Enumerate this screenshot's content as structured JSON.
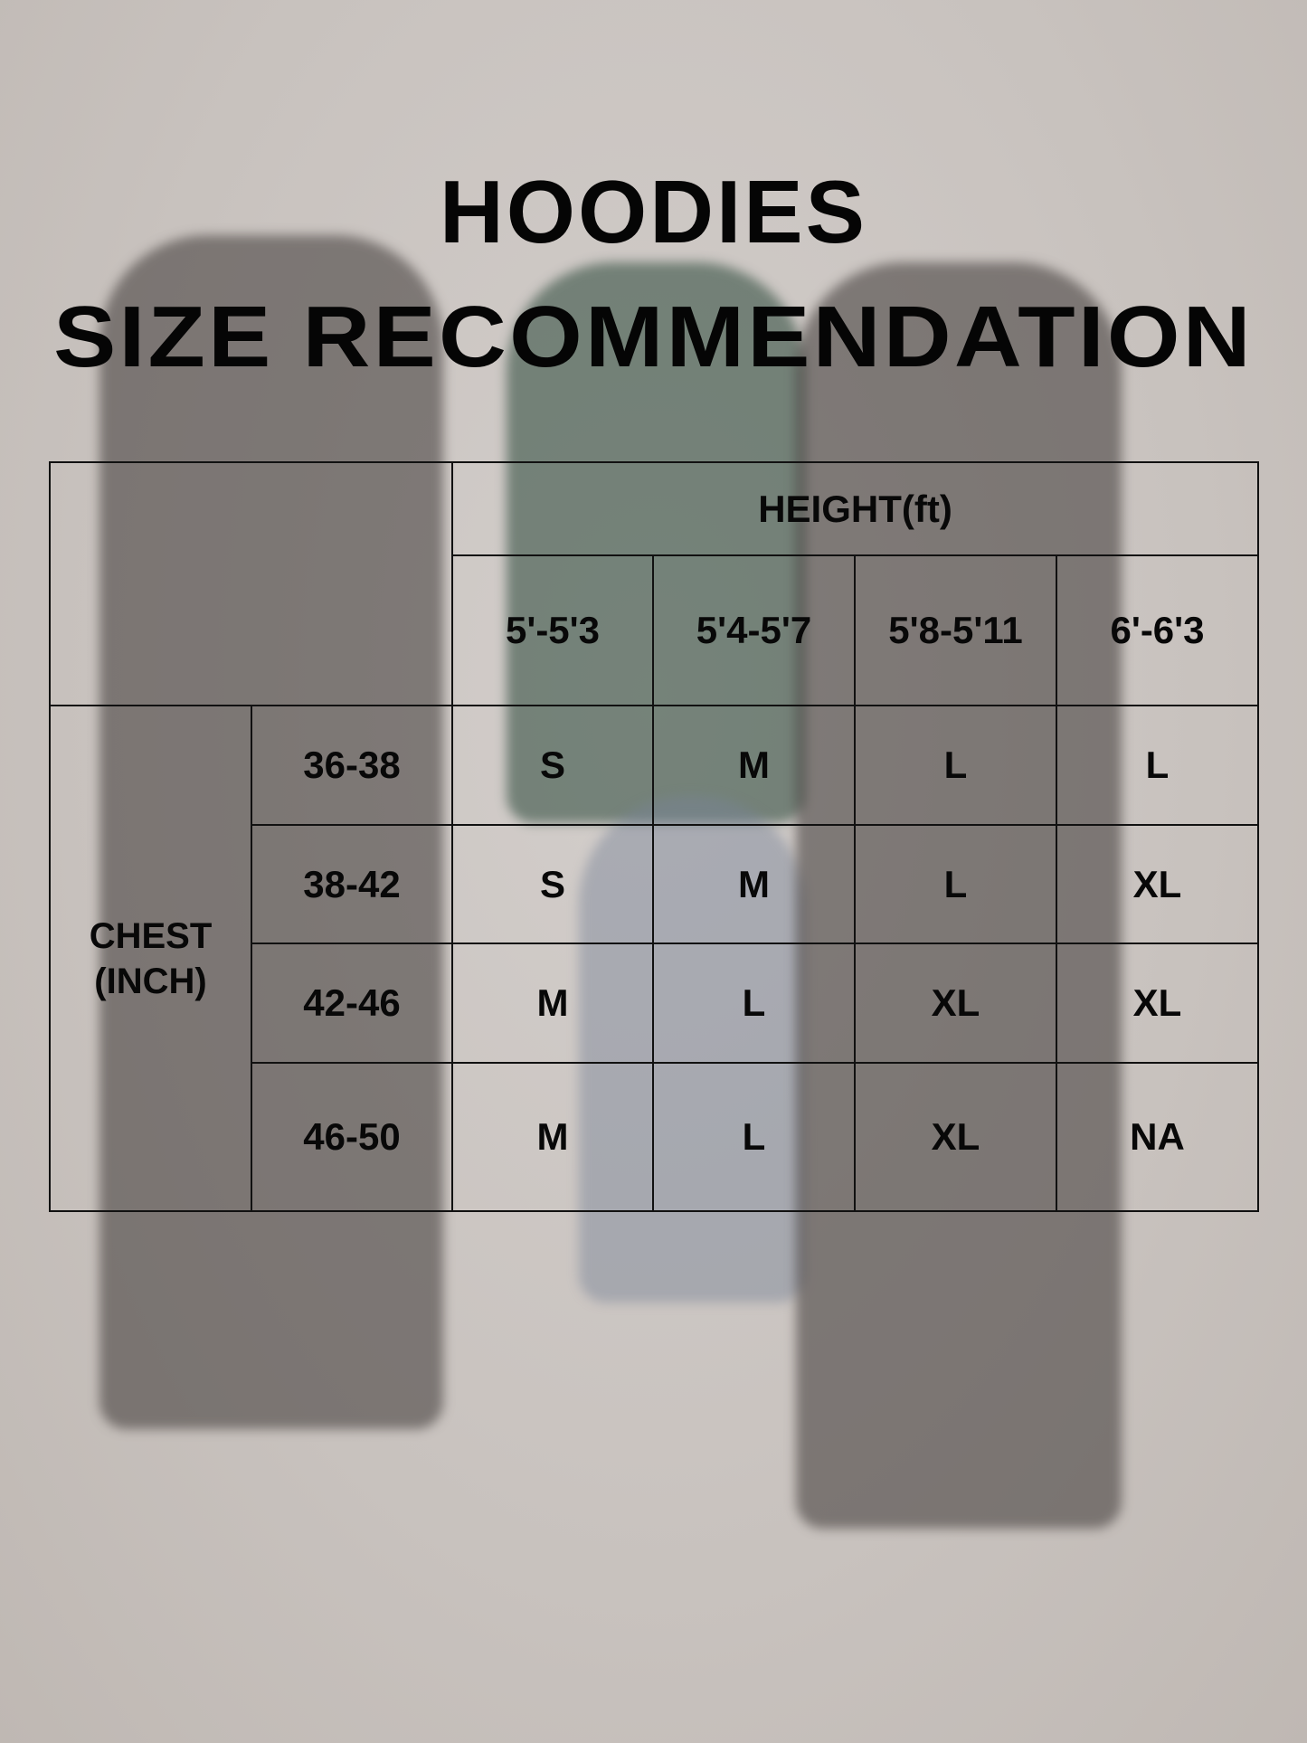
{
  "title": {
    "line1": "HOODIES",
    "line2": "SIZE RECOMMENDATION"
  },
  "table": {
    "height_header": "HEIGHT(ft)",
    "height_columns": [
      "5'-5'3",
      "5'4-5'7",
      "5'8-5'11",
      "6'-6'3"
    ],
    "chest_label_line1": "CHEST",
    "chest_label_line2": "(INCH)",
    "rows": [
      {
        "chest": "36-38",
        "sizes": [
          "S",
          "M",
          "L",
          "L"
        ]
      },
      {
        "chest": "38-42",
        "sizes": [
          "S",
          "M",
          "L",
          "XL"
        ]
      },
      {
        "chest": "42-46",
        "sizes": [
          "M",
          "L",
          "XL",
          "XL"
        ]
      },
      {
        "chest": "46-50",
        "sizes": [
          "M",
          "L",
          "XL",
          "NA"
        ]
      }
    ]
  }
}
